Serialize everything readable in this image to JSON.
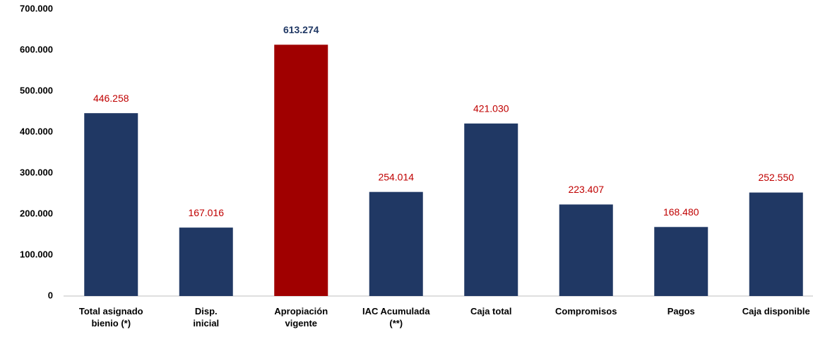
{
  "chart_data": {
    "type": "bar",
    "categories": [
      "Total asignado\nbienio (*)",
      "Disp.\ninicial",
      "Apropiación\nvigente",
      "IAC Acumulada\n(**)",
      "Caja total",
      "Compromisos",
      "Pagos",
      "Caja disponible"
    ],
    "values": [
      446258,
      167016,
      613274,
      254014,
      421030,
      223407,
      168480,
      252550
    ],
    "value_labels": [
      "446.258",
      "167.016",
      "613.274",
      "254.014",
      "421.030",
      "223.407",
      "168.480",
      "252.550"
    ],
    "colors": [
      "#203864",
      "#203864",
      "#a00000",
      "#203864",
      "#203864",
      "#203864",
      "#203864",
      "#203864"
    ],
    "value_label_colors": [
      "#c00000",
      "#c00000",
      "#203864",
      "#c00000",
      "#c00000",
      "#c00000",
      "#c00000",
      "#c00000"
    ],
    "ylim": [
      0,
      700000
    ],
    "yticks": [
      0,
      {
        "value": 100000,
        "label": "100.000"
      },
      {
        "value": 200000,
        "label": "200.000"
      },
      {
        "value": 300000,
        "label": "300.000"
      },
      {
        "value": 400000,
        "label": "400.000"
      },
      {
        "value": 500000,
        "label": "500.000"
      },
      {
        "value": 600000,
        "label": "600.000"
      },
      {
        "value": 700000,
        "label": "700.000"
      }
    ],
    "grid": false
  }
}
